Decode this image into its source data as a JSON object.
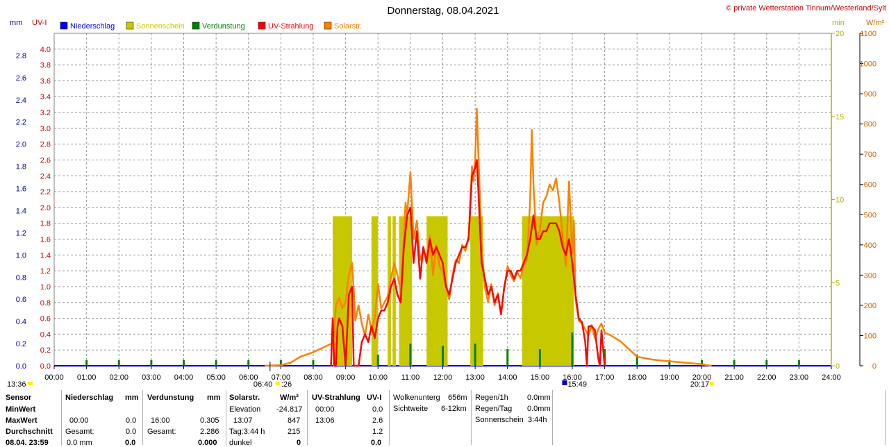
{
  "chart_data": {
    "type": "line",
    "title": "Donnerstag, 08.04.2021",
    "copyright": "© private Wetterstation Tinnum/Westerland/Sylt",
    "axis_units": {
      "left_outer": "mm",
      "left_inner": "UV-I",
      "right_inner": "min",
      "right_outer": "W/m²"
    },
    "legend": [
      {
        "name": "Niederschlag",
        "color": "#0000ff"
      },
      {
        "name": "Sonnenschein",
        "color": "#c8c800"
      },
      {
        "name": "Verdunstung",
        "color": "#008000"
      },
      {
        "name": "UV-Strahlung",
        "color": "#ff0000"
      },
      {
        "name": "Solarstr.",
        "color": "#ff8000"
      }
    ],
    "x_ticks": [
      "00:00",
      "01:00",
      "02:00",
      "03:00",
      "04:00",
      "05:00",
      "06:00",
      "07:00",
      "08:00",
      "09:00",
      "10:00",
      "11:00",
      "12:00",
      "13:00",
      "14:00",
      "15:00",
      "16:00",
      "17:00",
      "18:00",
      "19:00",
      "20:00",
      "21:00",
      "22:00",
      "23:00",
      "24:00"
    ],
    "mm_ticks": [
      "0.0",
      "0.2",
      "0.4",
      "0.6",
      "0.8",
      "1.0",
      "1.2",
      "1.4",
      "1.6",
      "1.8",
      "2.0",
      "2.2",
      "2.4",
      "2.6",
      "2.8"
    ],
    "uv_ticks": [
      "0.0",
      "0.2",
      "0.4",
      "0.6",
      "0.8",
      "1.0",
      "1.2",
      "1.4",
      "1.6",
      "1.8",
      "2.0",
      "2.2",
      "2.4",
      "2.6",
      "2.8",
      "3.0",
      "3.2",
      "3.4",
      "3.6",
      "3.8",
      "4.0"
    ],
    "min_ticks": [
      "0",
      "5",
      "10",
      "15",
      "20"
    ],
    "wm2_ticks": [
      "0",
      "100",
      "200",
      "300",
      "400",
      "500",
      "600",
      "700",
      "800",
      "900",
      "1000",
      "1100"
    ],
    "ranges": {
      "mm": [
        0,
        3.0
      ],
      "uv": [
        0,
        4.2
      ],
      "min": [
        0,
        20
      ],
      "wm2": [
        0,
        1100
      ],
      "hours": [
        0,
        24
      ]
    },
    "sun_markers": {
      "sunrise": "06:40",
      "sunset": "20:17",
      "moonrise": "13:36",
      "moonset": "15:49",
      "dawn_label": ":26"
    },
    "solar_wm2": [
      [
        6.5,
        0
      ],
      [
        7.0,
        2
      ],
      [
        7.3,
        10
      ],
      [
        7.6,
        30
      ],
      [
        8.0,
        45
      ],
      [
        8.3,
        60
      ],
      [
        8.6,
        75
      ],
      [
        8.65,
        110
      ],
      [
        8.7,
        200
      ],
      [
        8.8,
        225
      ],
      [
        8.9,
        190
      ],
      [
        9.0,
        210
      ],
      [
        9.1,
        300
      ],
      [
        9.2,
        340
      ],
      [
        9.25,
        250
      ],
      [
        9.3,
        150
      ],
      [
        9.4,
        200
      ],
      [
        9.5,
        140
      ],
      [
        9.6,
        100
      ],
      [
        9.7,
        170
      ],
      [
        9.8,
        120
      ],
      [
        9.9,
        160
      ],
      [
        10.0,
        270
      ],
      [
        10.1,
        190
      ],
      [
        10.2,
        210
      ],
      [
        10.3,
        230
      ],
      [
        10.4,
        290
      ],
      [
        10.5,
        340
      ],
      [
        10.6,
        300
      ],
      [
        10.7,
        250
      ],
      [
        10.8,
        420
      ],
      [
        10.85,
        540
      ],
      [
        10.9,
        500
      ],
      [
        11.0,
        640
      ],
      [
        11.1,
        420
      ],
      [
        11.2,
        480
      ],
      [
        11.3,
        350
      ],
      [
        11.4,
        380
      ],
      [
        11.5,
        360
      ],
      [
        11.6,
        430
      ],
      [
        11.7,
        300
      ],
      [
        11.8,
        400
      ],
      [
        11.9,
        330
      ],
      [
        12.0,
        310
      ],
      [
        12.1,
        260
      ],
      [
        12.2,
        220
      ],
      [
        12.3,
        300
      ],
      [
        12.4,
        350
      ],
      [
        12.5,
        340
      ],
      [
        12.6,
        400
      ],
      [
        12.7,
        380
      ],
      [
        12.8,
        430
      ],
      [
        12.9,
        660
      ],
      [
        12.95,
        610
      ],
      [
        13.0,
        680
      ],
      [
        13.05,
        850
      ],
      [
        13.1,
        700
      ],
      [
        13.2,
        400
      ],
      [
        13.3,
        260
      ],
      [
        13.4,
        210
      ],
      [
        13.5,
        270
      ],
      [
        13.6,
        200
      ],
      [
        13.7,
        240
      ],
      [
        13.8,
        170
      ],
      [
        13.9,
        260
      ],
      [
        14.0,
        330
      ],
      [
        14.1,
        300
      ],
      [
        14.2,
        280
      ],
      [
        14.3,
        310
      ],
      [
        14.4,
        290
      ],
      [
        14.5,
        330
      ],
      [
        14.6,
        350
      ],
      [
        14.7,
        550
      ],
      [
        14.75,
        780
      ],
      [
        14.8,
        600
      ],
      [
        14.9,
        400
      ],
      [
        15.0,
        450
      ],
      [
        15.1,
        540
      ],
      [
        15.2,
        560
      ],
      [
        15.3,
        600
      ],
      [
        15.4,
        580
      ],
      [
        15.5,
        620
      ],
      [
        15.6,
        540
      ],
      [
        15.7,
        430
      ],
      [
        15.8,
        330
      ],
      [
        15.9,
        610
      ],
      [
        16.0,
        370
      ],
      [
        16.05,
        480
      ],
      [
        16.1,
        220
      ],
      [
        16.2,
        150
      ],
      [
        16.3,
        140
      ],
      [
        16.4,
        120
      ],
      [
        16.5,
        100
      ],
      [
        16.6,
        135
      ],
      [
        16.7,
        90
      ],
      [
        16.8,
        120
      ],
      [
        16.9,
        140
      ],
      [
        17.0,
        110
      ],
      [
        17.2,
        100
      ],
      [
        17.5,
        80
      ],
      [
        17.8,
        50
      ],
      [
        18.0,
        30
      ],
      [
        18.5,
        20
      ],
      [
        19.0,
        15
      ],
      [
        19.5,
        10
      ],
      [
        20.0,
        5
      ],
      [
        20.3,
        0
      ]
    ],
    "uv_index": [
      [
        8.55,
        0
      ],
      [
        8.6,
        0.6
      ],
      [
        8.65,
        0.0
      ],
      [
        8.7,
        0.0
      ],
      [
        8.75,
        0.5
      ],
      [
        8.8,
        0.6
      ],
      [
        8.9,
        0.5
      ],
      [
        9.0,
        0.0
      ],
      [
        9.1,
        0.9
      ],
      [
        9.2,
        1.0
      ],
      [
        9.25,
        0.0
      ],
      [
        9.3,
        0.0
      ],
      [
        9.4,
        0.0
      ],
      [
        9.5,
        0.3
      ],
      [
        9.6,
        0.4
      ],
      [
        9.7,
        0.3
      ],
      [
        9.8,
        0.5
      ],
      [
        9.9,
        0.35
      ],
      [
        10.0,
        0.6
      ],
      [
        10.1,
        0.7
      ],
      [
        10.2,
        0.7
      ],
      [
        10.3,
        0.8
      ],
      [
        10.4,
        1.0
      ],
      [
        10.5,
        1.1
      ],
      [
        10.6,
        0.9
      ],
      [
        10.7,
        0.8
      ],
      [
        10.8,
        1.5
      ],
      [
        10.9,
        1.9
      ],
      [
        11.0,
        2.0
      ],
      [
        11.1,
        1.3
      ],
      [
        11.2,
        1.7
      ],
      [
        11.3,
        1.1
      ],
      [
        11.4,
        1.5
      ],
      [
        11.5,
        1.3
      ],
      [
        11.6,
        1.6
      ],
      [
        11.7,
        1.4
      ],
      [
        11.8,
        1.5
      ],
      [
        11.9,
        1.4
      ],
      [
        12.0,
        1.3
      ],
      [
        12.1,
        1.0
      ],
      [
        12.2,
        0.9
      ],
      [
        12.3,
        1.1
      ],
      [
        12.4,
        1.3
      ],
      [
        12.5,
        1.4
      ],
      [
        12.6,
        1.5
      ],
      [
        12.7,
        1.5
      ],
      [
        12.8,
        1.6
      ],
      [
        12.9,
        2.4
      ],
      [
        13.0,
        2.5
      ],
      [
        13.05,
        2.6
      ],
      [
        13.1,
        2.2
      ],
      [
        13.2,
        1.3
      ],
      [
        13.3,
        1.1
      ],
      [
        13.4,
        0.9
      ],
      [
        13.5,
        1.0
      ],
      [
        13.6,
        0.8
      ],
      [
        13.7,
        0.9
      ],
      [
        13.8,
        0.65
      ],
      [
        13.9,
        1.0
      ],
      [
        14.0,
        1.2
      ],
      [
        14.1,
        1.2
      ],
      [
        14.2,
        1.1
      ],
      [
        14.3,
        1.2
      ],
      [
        14.4,
        1.2
      ],
      [
        14.5,
        1.3
      ],
      [
        14.6,
        1.4
      ],
      [
        14.7,
        1.6
      ],
      [
        14.8,
        1.9
      ],
      [
        14.9,
        1.6
      ],
      [
        15.0,
        1.6
      ],
      [
        15.1,
        1.7
      ],
      [
        15.2,
        1.7
      ],
      [
        15.3,
        1.8
      ],
      [
        15.4,
        1.8
      ],
      [
        15.5,
        1.8
      ],
      [
        15.6,
        1.7
      ],
      [
        15.7,
        1.5
      ],
      [
        15.8,
        1.4
      ],
      [
        15.9,
        1.6
      ],
      [
        16.0,
        1.3
      ],
      [
        16.1,
        0.9
      ],
      [
        16.2,
        0.6
      ],
      [
        16.3,
        0.55
      ],
      [
        16.4,
        0.3
      ],
      [
        16.45,
        0.0
      ],
      [
        16.5,
        0.5
      ],
      [
        16.6,
        0.5
      ],
      [
        16.7,
        0.45
      ],
      [
        16.8,
        0.1
      ],
      [
        16.85,
        0.0
      ],
      [
        16.9,
        0.45
      ],
      [
        17.0,
        0.0
      ]
    ],
    "sunshine_min": [
      [
        8.6,
        9.2,
        2
      ],
      [
        9.8,
        10.0,
        2
      ],
      [
        10.3,
        10.4,
        2
      ],
      [
        10.45,
        10.55,
        2
      ],
      [
        10.65,
        11.05,
        2
      ],
      [
        11.5,
        12.15,
        2
      ],
      [
        12.85,
        13.25,
        2
      ],
      [
        14.45,
        16.05,
        2
      ]
    ],
    "evaporation_spikes": [
      [
        1,
        0.05
      ],
      [
        2,
        0.05
      ],
      [
        3,
        0.05
      ],
      [
        4,
        0.05
      ],
      [
        5,
        0.05
      ],
      [
        6,
        0.05
      ],
      [
        7,
        0.05
      ],
      [
        8,
        0.05
      ],
      [
        9,
        0.05
      ],
      [
        10,
        0.1
      ],
      [
        11,
        0.2
      ],
      [
        12,
        0.18
      ],
      [
        13,
        0.2
      ],
      [
        14,
        0.15
      ],
      [
        15,
        0.15
      ],
      [
        16,
        0.3
      ],
      [
        17,
        0.15
      ],
      [
        18,
        0.1
      ],
      [
        19,
        0.05
      ],
      [
        20,
        0.05
      ],
      [
        21,
        0.05
      ],
      [
        22,
        0.05
      ],
      [
        23,
        0.05
      ]
    ]
  },
  "stats": {
    "col_sensor": {
      "h": "Sensor",
      "r1": "MinWert",
      "r2": "MaxWert",
      "r3": "Durchschnitt",
      "r4": "08.04. 23:59"
    },
    "col_rain": {
      "h": "Niederschlag",
      "unit": "mm",
      "max_t": "00:00",
      "max_v": "0.0",
      "avg_l": "Gesamt:",
      "avg_v": "0.0",
      "now_l": "0.0 mm",
      "now_v": "0.0"
    },
    "col_evap": {
      "h": "Verdunstung",
      "unit": "mm",
      "max_t": "16:00",
      "max_v": "0.305",
      "avg_l": "Gesamt:",
      "avg_v": "2.286",
      "now_v": "0.000"
    },
    "col_solar": {
      "h": "Solarstr.",
      "unit": "W/m²",
      "min_l": "Elevation",
      "min_v": "-24.817",
      "max_t": "13:07",
      "max_v": "847",
      "avg_l": "Tag:3:44 h",
      "avg_v": "215",
      "now_l": "dunkel",
      "now_v": "0"
    },
    "col_uv": {
      "h": "UV-Strahlung",
      "unit": "UV-I",
      "min_t": "00:00",
      "min_v": "0.0",
      "max_t": "13:06",
      "max_v": "2.6",
      "avg_v": "1.2",
      "now_v": "0.0"
    },
    "col_cloud": {
      "l1": "Wolkenunterg",
      "v1": "656m",
      "l2": "Sichtweite",
      "v2": "6-12km"
    },
    "col_regen": {
      "l1": "Regen/1h",
      "v1": "0.0mm",
      "l2": "Regen/Tag",
      "v2": "0.0mm",
      "l3": "Sonnenschein",
      "v3": "3:44h"
    }
  }
}
